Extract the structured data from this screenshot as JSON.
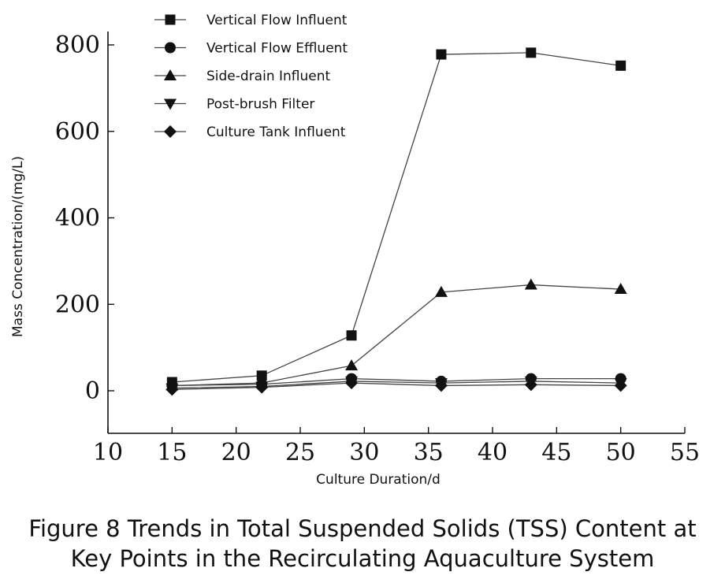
{
  "chart_data": {
    "type": "line",
    "title": "",
    "xlabel": "Culture Duration/d",
    "ylabel": "Mass Concentration/(mg/L)",
    "xlim": [
      10,
      55
    ],
    "ylim": [
      -100,
      800
    ],
    "x_ticks": [
      10,
      15,
      20,
      25,
      30,
      35,
      40,
      45,
      50,
      55
    ],
    "y_ticks": [
      0,
      200,
      400,
      600,
      800
    ],
    "x": [
      15,
      22,
      29,
      36,
      43,
      50
    ],
    "legend_position": "top-left",
    "grid": false,
    "series": [
      {
        "name": "Vertical Flow Influent",
        "marker": "square",
        "values": [
          20,
          35,
          128,
          778,
          782,
          752
        ]
      },
      {
        "name": "Vertical Flow Effluent",
        "marker": "circle",
        "values": [
          12,
          15,
          28,
          22,
          28,
          28
        ]
      },
      {
        "name": "Side-drain Influent",
        "marker": "triangle-up",
        "values": [
          12,
          18,
          58,
          228,
          245,
          235
        ]
      },
      {
        "name": "Post-brush Filter",
        "marker": "triangle-down",
        "values": [
          6,
          10,
          22,
          18,
          22,
          18
        ]
      },
      {
        "name": "Culture Tank Influent",
        "marker": "diamond",
        "values": [
          3,
          8,
          18,
          12,
          14,
          12
        ]
      }
    ]
  },
  "caption": {
    "line1": "Figure 8 Trends in Total Suspended Solids (TSS) Content at",
    "line2": "Key Points in the Recirculating Aquaculture System"
  }
}
